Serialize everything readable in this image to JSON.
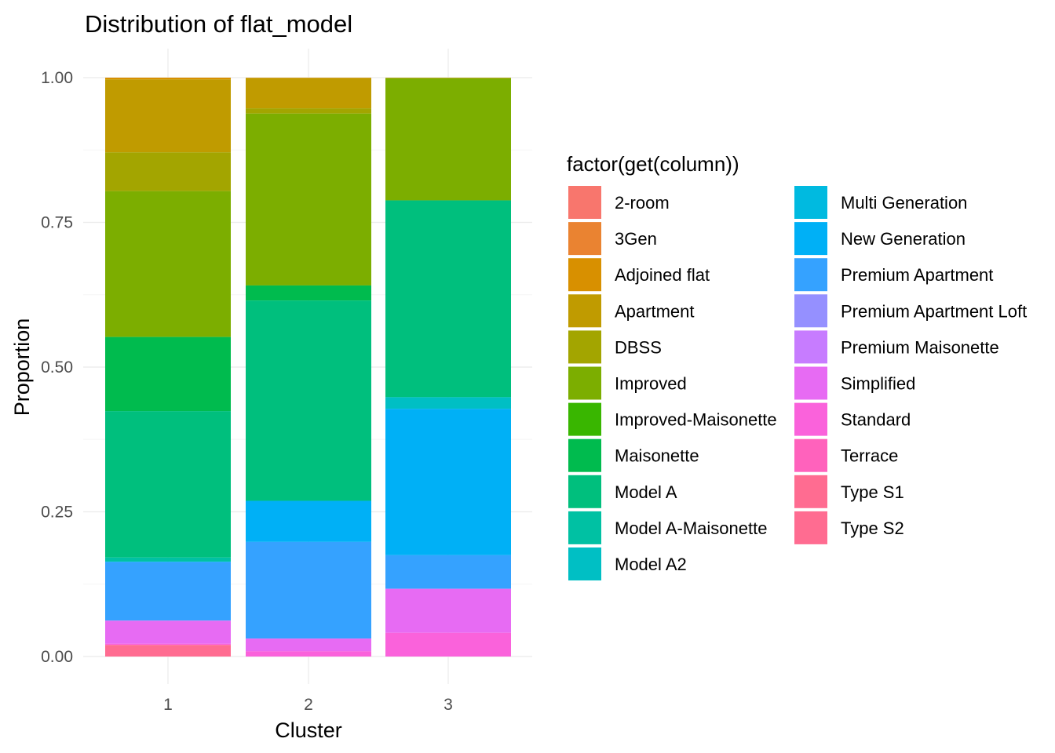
{
  "chart_data": {
    "type": "bar",
    "stacked": true,
    "title": "Distribution of flat_model",
    "xlabel": "Cluster",
    "ylabel": "Proportion",
    "categories": [
      "1",
      "2",
      "3"
    ],
    "ylim": [
      0,
      1
    ],
    "yticks": [
      "0.00",
      "0.25",
      "0.50",
      "0.75",
      "1.00"
    ],
    "ytick_values": [
      0,
      0.25,
      0.5,
      0.75,
      1.0
    ],
    "grid": true,
    "legend": {
      "title": "factor(get(column))",
      "position": "right",
      "columns": 2
    },
    "series": [
      {
        "name": "2-room",
        "color": "#F8766D",
        "values": [
          0.0,
          0.0,
          0.0
        ]
      },
      {
        "name": "3Gen",
        "color": "#EA8331",
        "values": [
          0.0,
          0.0,
          0.0
        ]
      },
      {
        "name": "Adjoined flat",
        "color": "#D89000",
        "values": [
          0.003,
          0.001,
          0.0
        ]
      },
      {
        "name": "Apartment",
        "color": "#C09B00",
        "values": [
          0.126,
          0.052,
          0.001
        ]
      },
      {
        "name": "DBSS",
        "color": "#A3A500",
        "values": [
          0.067,
          0.009,
          0.0
        ]
      },
      {
        "name": "Improved",
        "color": "#7CAE00",
        "values": [
          0.252,
          0.297,
          0.211
        ]
      },
      {
        "name": "Improved-Maisonette",
        "color": "#39B600",
        "values": [
          0.0,
          0.0,
          0.0
        ]
      },
      {
        "name": "Maisonette",
        "color": "#00BB4E",
        "values": [
          0.128,
          0.026,
          0.0
        ]
      },
      {
        "name": "Model A",
        "color": "#00BF7D",
        "values": [
          0.253,
          0.346,
          0.34
        ]
      },
      {
        "name": "Model A-Maisonette",
        "color": "#00C1A3",
        "values": [
          0.007,
          0.0,
          0.0
        ]
      },
      {
        "name": "Model A2",
        "color": "#00BFC4",
        "values": [
          0.0,
          0.0,
          0.02
        ]
      },
      {
        "name": "Multi Generation",
        "color": "#00BAE0",
        "values": [
          0.0,
          0.0,
          0.0
        ]
      },
      {
        "name": "New Generation",
        "color": "#00B0F6",
        "values": [
          0.001,
          0.071,
          0.253
        ]
      },
      {
        "name": "Premium Apartment",
        "color": "#35A2FF",
        "values": [
          0.101,
          0.167,
          0.058
        ]
      },
      {
        "name": "Premium Apartment Loft",
        "color": "#9590FF",
        "values": [
          0.0,
          0.0,
          0.0
        ]
      },
      {
        "name": "Premium Maisonette",
        "color": "#C77CFF",
        "values": [
          0.0,
          0.0,
          0.0
        ]
      },
      {
        "name": "Simplified",
        "color": "#E76BF3",
        "values": [
          0.04,
          0.022,
          0.076
        ]
      },
      {
        "name": "Standard",
        "color": "#FA62DB",
        "values": [
          0.002,
          0.009,
          0.041
        ]
      },
      {
        "name": "Terrace",
        "color": "#FF62BC",
        "values": [
          0.0,
          0.0,
          0.0
        ]
      },
      {
        "name": "Type S1",
        "color": "#FF6C91",
        "values": [
          0.0,
          0.0,
          0.0
        ]
      },
      {
        "name": "Type S2",
        "color": "#FF6C91",
        "values": [
          0.02,
          0.0,
          0.0
        ]
      }
    ]
  }
}
